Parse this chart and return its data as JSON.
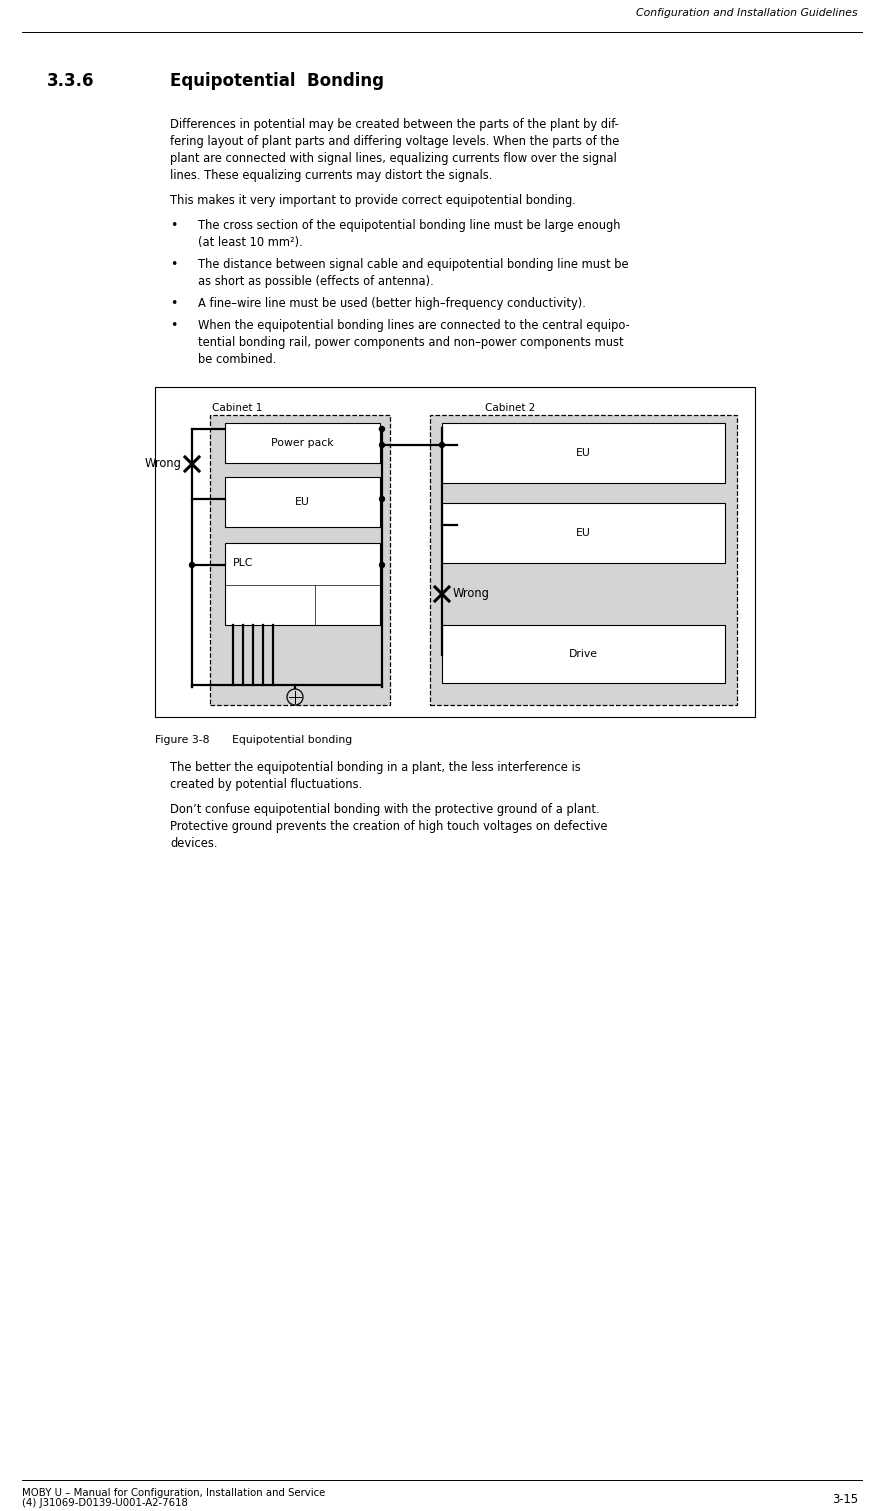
{
  "header_text": "Configuration and Installation Guidelines",
  "section_number": "3.3.6",
  "section_title": "Equipotential  Bonding",
  "para1_lines": [
    "Differences in potential may be created between the parts of the plant by dif-",
    "fering layout of plant parts and differing voltage levels. When the parts of the",
    "plant are connected with signal lines, equalizing currents flow over the signal",
    "lines. These equalizing currents may distort the signals."
  ],
  "para2": "This makes it very important to provide correct equipotential bonding.",
  "bullets": [
    [
      "The cross section of the equipotential bonding line must be large enough",
      "(at least 10 mm²)."
    ],
    [
      "The distance between signal cable and equipotential bonding line must be",
      "as short as possible (effects of antenna)."
    ],
    [
      "A fine–wire line must be used (better high–frequency conductivity)."
    ],
    [
      "When the equipotential bonding lines are connected to the central equipo-",
      "tential bonding rail, power components and non–power components must",
      "be combined."
    ]
  ],
  "figure_caption_bold": "Figure 3-8",
  "figure_caption_rest": "      Equipotential bonding",
  "para3_lines": [
    "The better the equipotential bonding in a plant, the less interference is",
    "created by potential fluctuations."
  ],
  "para4_lines": [
    "Don’t confuse equipotential bonding with the protective ground of a plant.",
    "Protective ground prevents the creation of high touch voltages on defective",
    "devices."
  ],
  "footer_left1": "MOBY U – Manual for Configuration, Installation and Service",
  "footer_left2": "(4) J31069-D0139-U001-A2-7618",
  "footer_right": "3-15",
  "bg_color": "#ffffff",
  "text_color": "#000000",
  "gray_fill": "#d4d4d4",
  "box_fill": "#ffffff"
}
